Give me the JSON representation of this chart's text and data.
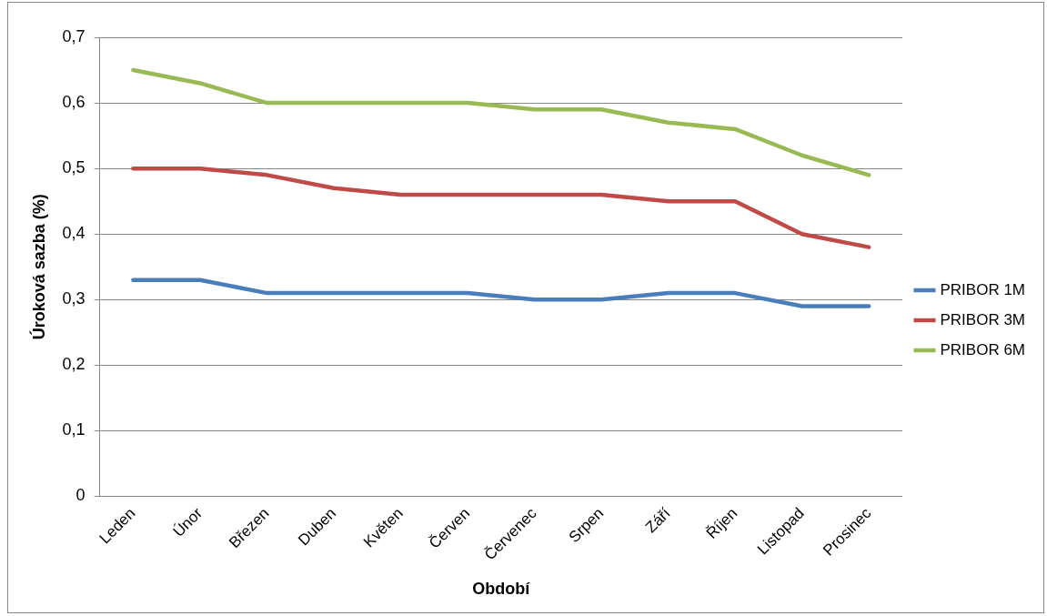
{
  "chart_data": {
    "type": "line",
    "xlabel": "Období",
    "ylabel": "Úroková sazba (%)",
    "categories": [
      "Leden",
      "Únor",
      "Březen",
      "Duben",
      "Květen",
      "Červen",
      "Červenec",
      "Srpen",
      "Září",
      "Říjen",
      "Listopad",
      "Prosinec"
    ],
    "series": [
      {
        "name": "PRIBOR 1M",
        "color": "#4a7ebb",
        "values": [
          0.33,
          0.33,
          0.31,
          0.31,
          0.31,
          0.31,
          0.3,
          0.3,
          0.31,
          0.31,
          0.29,
          0.29
        ]
      },
      {
        "name": "PRIBOR 3M",
        "color": "#be4b48",
        "values": [
          0.5,
          0.5,
          0.49,
          0.47,
          0.46,
          0.46,
          0.46,
          0.46,
          0.45,
          0.45,
          0.4,
          0.38
        ]
      },
      {
        "name": "PRIBOR 6M",
        "color": "#98b954",
        "values": [
          0.65,
          0.63,
          0.6,
          0.6,
          0.6,
          0.6,
          0.59,
          0.59,
          0.57,
          0.56,
          0.52,
          0.49
        ]
      }
    ],
    "ylim": [
      0,
      0.7
    ],
    "yticks": [
      {
        "value": 0,
        "label": "0"
      },
      {
        "value": 0.1,
        "label": "0,1"
      },
      {
        "value": 0.2,
        "label": "0,2"
      },
      {
        "value": 0.3,
        "label": "0,3"
      },
      {
        "value": 0.4,
        "label": "0,4"
      },
      {
        "value": 0.5,
        "label": "0,5"
      },
      {
        "value": 0.6,
        "label": "0,6"
      },
      {
        "value": 0.7,
        "label": "0,7"
      }
    ],
    "grid": "y",
    "legend": "right",
    "marker": "none",
    "line_style": "solid"
  }
}
